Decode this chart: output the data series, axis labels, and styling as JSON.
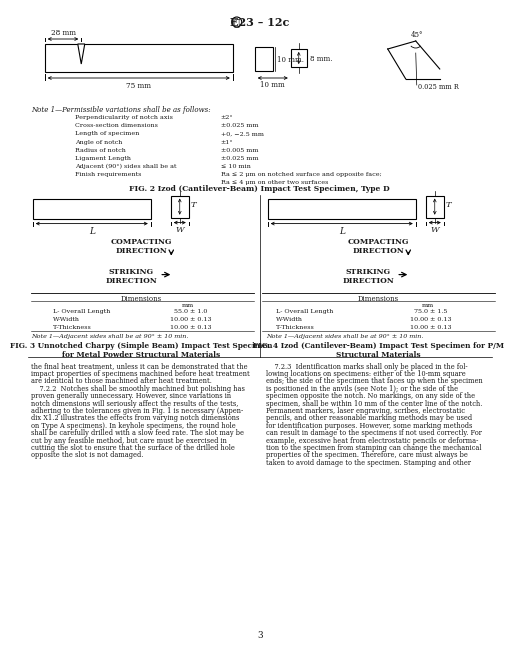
{
  "title": "E23 – 12c",
  "bg_color": "#ffffff",
  "text_color": "#1a1a1a",
  "fig2_title": "FIG. 2 Izod (Cantilever-Beam) Impact Test Specimen, Type D",
  "fig3_title": "FIG. 3 Unnotched Charpy (Simple Beam) Impact Test Specimen\nfor Metal Powder Structural Materials",
  "fig4_title": "FIG. 4 Izod (Cantilever-Beam) Impact Test Specimen for P/M\nStructural Materials",
  "note1_header": "Note 1—Permissible variations shall be as follows:",
  "note1_items": [
    [
      "Perpendicularity of notch axis",
      "±2°"
    ],
    [
      "Cross-section dimensions",
      "±0.025 mm"
    ],
    [
      "Length of specimen",
      "+0, −2.5 mm"
    ],
    [
      "Angle of notch",
      "±1°"
    ],
    [
      "Radius of notch",
      "±0.005 mm"
    ],
    [
      "Ligament Length",
      "±0.025 mm"
    ],
    [
      "Adjacent (90°) sides shall be at",
      "≤ 10 min"
    ],
    [
      "Finish requirements",
      "Ra ≤ 2 μm on notched surface and opposite face;"
    ]
  ],
  "note1_finish_line2": "Ra ≤ 4 μm on other two surfaces",
  "note_fig3": "Note 1—Adjacent sides shall be at 90° ± 10 min.",
  "note_fig4": "Note 1—Adjacent sides shall be at 90° ± 10 min.",
  "dims_fig3_header": "Dimensions",
  "dims_fig3_subheader": "mm",
  "dims_fig3": [
    [
      "L- Overall Length",
      "55.0 ± 1.0"
    ],
    [
      "W-Width",
      "10.00 ± 0.13"
    ],
    [
      "T-Thickness",
      "10.00 ± 0.13"
    ]
  ],
  "dims_fig4_header": "Dimensions",
  "dims_fig4_subheader": "mm",
  "dims_fig4": [
    [
      "L- Overall Length",
      "75.0 ± 1.5"
    ],
    [
      "W-Width",
      "10.00 ± 0.13"
    ],
    [
      "T-Thickness",
      "10.00 ± 0.13"
    ]
  ],
  "body_left_lines": [
    "the final heat treatment, unless it can be demonstrated that the",
    "impact properties of specimens machined before heat treatment",
    "are identical to those machined after heat treatment.",
    "    7.2.2  Notches shall be smoothly machined but polishing has",
    "proven generally unnecessary. However, since variations in",
    "notch dimensions will seriously affect the results of the tests,",
    "adhering to the tolerances given in Fig. 1 is necessary (Appen-",
    "dix X1.2 illustrates the effects from varying notch dimensions",
    "on Type A specimens). In keyhole specimens, the round hole",
    "shall be carefully drilled with a slow feed rate. The slot may be",
    "cut by any feasible method, but care must be exercised in",
    "cutting the slot to ensure that the surface of the drilled hole",
    "opposite the slot is not damaged."
  ],
  "body_right_lines": [
    "    7.2.3  Identification marks shall only be placed in the fol-",
    "lowing locations on specimens: either of the 10-mm square",
    "ends; the side of the specimen that faces up when the specimen",
    "is positioned in the anvils (see Note 1); or the side of the",
    "specimen opposite the notch. No markings, on any side of the",
    "specimen, shall be within 10 mm of the center line of the notch.",
    "Permanent markers, laser engraving, scribes, electrostatic",
    "pencils, and other reasonable marking methods may be used",
    "for identification purposes. However, some marking methods",
    "can result in damage to the specimens if not used correctly. For",
    "example, excessive heat from electrostatic pencils or deforma-",
    "tion to the specimen from stamping can change the mechanical",
    "properties of the specimen. Therefore, care must always be",
    "taken to avoid damage to the specimen. Stamping and other"
  ],
  "page_num": "3",
  "compacting_dir": "COMPACTING\nDIRECTION",
  "striking_dir": "STRIKING\nDIRECTION"
}
